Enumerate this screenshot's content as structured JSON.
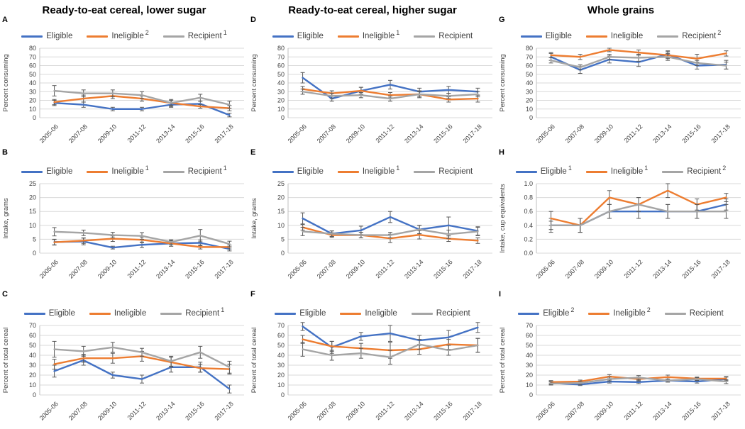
{
  "figure": {
    "column_titles": [
      "Ready-to-eat cereal, lower sugar",
      "Ready-to-eat cereal, higher sugar",
      "Whole grains"
    ],
    "colors": {
      "eligible": "#4472C4",
      "ineligible": "#ED7D31",
      "recipient": "#A5A5A5",
      "error_bar": "#595959",
      "gridline": "#D9D9D9"
    }
  },
  "chart_data": [
    {
      "type": "line",
      "panel": "A",
      "column_title": "Ready-to-eat cereal, lower sugar",
      "ylabel": "Percent consuming",
      "ylim": [
        0,
        80
      ],
      "ystep": 10,
      "ydecimals": 0,
      "grid": true,
      "legend_position": "top",
      "categories": [
        "2005-06",
        "2007-08",
        "2009-10",
        "2011-12",
        "2013-14",
        "2015-16",
        "2017-18"
      ],
      "series": [
        {
          "name": "Eligible",
          "legend_sup": "",
          "color": "#4472C4",
          "values": [
            17,
            15,
            10,
            10,
            15,
            16,
            3
          ],
          "errors": [
            3,
            3,
            2,
            2,
            3,
            3,
            2
          ]
        },
        {
          "name": "Ineligible",
          "legend_sup": "2",
          "color": "#ED7D31",
          "values": [
            18,
            22,
            25,
            22,
            17,
            13,
            11
          ],
          "errors": [
            3,
            4,
            3,
            3,
            3,
            2,
            3
          ]
        },
        {
          "name": "Recipient",
          "legend_sup": "1",
          "color": "#A5A5A5",
          "values": [
            31,
            28,
            28,
            26,
            17,
            23,
            15
          ],
          "errors": [
            6,
            4,
            4,
            4,
            4,
            4,
            4
          ]
        }
      ]
    },
    {
      "type": "line",
      "panel": "B",
      "column_title": "Ready-to-eat cereal, lower sugar",
      "ylabel": "Intake, grams",
      "ylim": [
        0,
        25
      ],
      "ystep": 5,
      "ydecimals": 0,
      "grid": true,
      "legend_position": "top",
      "categories": [
        "2005-06",
        "2007-08",
        "2009-10",
        "2011-12",
        "2013-14",
        "2015-16",
        "2017-18"
      ],
      "series": [
        {
          "name": "Eligible",
          "legend_sup": "",
          "color": "#4472C4",
          "values": [
            4,
            4.2,
            2,
            3,
            3.5,
            3.7,
            1.5
          ],
          "errors": [
            1,
            1.2,
            0.5,
            1,
            1,
            1,
            0.7
          ]
        },
        {
          "name": "Ineligible",
          "legend_sup": "1",
          "color": "#ED7D31",
          "values": [
            3.9,
            4.5,
            5.2,
            4.8,
            3.5,
            2.2,
            2.2
          ],
          "errors": [
            1,
            1,
            1,
            1,
            1,
            0.7,
            0.7
          ]
        },
        {
          "name": "Recipient",
          "legend_sup": "1",
          "color": "#A5A5A5",
          "values": [
            7.7,
            7.3,
            6.5,
            6.2,
            4,
            6.3,
            3.3
          ],
          "errors": [
            1.5,
            1,
            1,
            1.2,
            0.8,
            2.2,
            1
          ]
        }
      ]
    },
    {
      "type": "line",
      "panel": "C",
      "column_title": "Ready-to-eat cereal, lower sugar",
      "ylabel": "Percent of total cereal",
      "ylim": [
        0,
        70
      ],
      "ystep": 10,
      "ydecimals": 0,
      "grid": true,
      "legend_position": "top",
      "categories": [
        "2005-06",
        "2007-08",
        "2009-10",
        "2011-12",
        "2013-14",
        "2015-16",
        "2017-18"
      ],
      "series": [
        {
          "name": "Eligible",
          "legend_sup": "",
          "color": "#4472C4",
          "values": [
            24,
            35,
            20,
            16,
            28,
            28,
            6
          ],
          "errors": [
            6,
            5,
            3,
            4,
            5,
            5,
            4
          ]
        },
        {
          "name": "Ineligible",
          "legend_sup": "",
          "color": "#ED7D31",
          "values": [
            31,
            37,
            37,
            39,
            33,
            27,
            26
          ],
          "errors": [
            5,
            4,
            5,
            5,
            5,
            4,
            5
          ]
        },
        {
          "name": "Recipient",
          "legend_sup": "1",
          "color": "#A5A5A5",
          "values": [
            46,
            44,
            48,
            43,
            34,
            43,
            28
          ],
          "errors": [
            8,
            5,
            5,
            4,
            5,
            6,
            6
          ]
        }
      ]
    },
    {
      "type": "line",
      "panel": "D",
      "column_title": "Ready-to-eat cereal, higher sugar",
      "ylabel": "Percent consuming",
      "ylim": [
        0,
        80
      ],
      "ystep": 10,
      "ydecimals": 0,
      "grid": true,
      "legend_position": "top",
      "categories": [
        "2005-06",
        "2007-08",
        "2009-10",
        "2011-12",
        "2013-14",
        "2015-16",
        "2017-18"
      ],
      "series": [
        {
          "name": "Eligible",
          "legend_sup": "",
          "color": "#4472C4",
          "values": [
            46,
            22,
            31,
            38,
            30,
            32,
            30
          ],
          "errors": [
            6,
            3,
            4,
            5,
            4,
            4,
            4
          ]
        },
        {
          "name": "Ineligible",
          "legend_sup": "1",
          "color": "#ED7D31",
          "values": [
            33,
            28,
            31,
            26,
            27,
            21,
            22
          ],
          "errors": [
            3,
            3,
            4,
            3,
            3,
            3,
            4
          ]
        },
        {
          "name": "Recipient",
          "legend_sup": "",
          "color": "#A5A5A5",
          "values": [
            30,
            25,
            26,
            22,
            27,
            25,
            27
          ],
          "errors": [
            3,
            3,
            3,
            3,
            4,
            3,
            3
          ]
        }
      ]
    },
    {
      "type": "line",
      "panel": "E",
      "column_title": "Ready-to-eat cereal, higher sugar",
      "ylabel": "Intake, grams",
      "ylim": [
        0,
        25
      ],
      "ystep": 5,
      "ydecimals": 0,
      "grid": true,
      "legend_position": "top",
      "categories": [
        "2005-06",
        "2007-08",
        "2009-10",
        "2011-12",
        "2013-14",
        "2015-16",
        "2017-18"
      ],
      "series": [
        {
          "name": "Eligible",
          "legend_sup": "",
          "color": "#4472C4",
          "values": [
            12.5,
            7,
            8.2,
            13,
            8.5,
            10,
            8
          ],
          "errors": [
            2,
            1,
            1.5,
            2,
            1.5,
            3,
            1.5
          ]
        },
        {
          "name": "Ineligible",
          "legend_sup": "1",
          "color": "#ED7D31",
          "values": [
            9.3,
            6.5,
            6.5,
            5.3,
            6.6,
            5.2,
            4.5
          ],
          "errors": [
            1,
            0.8,
            1,
            1.5,
            1.5,
            1,
            1
          ]
        },
        {
          "name": "Recipient",
          "legend_sup": "",
          "color": "#A5A5A5",
          "values": [
            7.8,
            7,
            6.5,
            6.5,
            8.5,
            6.8,
            7.8
          ],
          "errors": [
            1.5,
            1,
            1,
            1,
            1.5,
            1.5,
            1.5
          ]
        }
      ]
    },
    {
      "type": "line",
      "panel": "F",
      "column_title": "Ready-to-eat cereal, higher sugar",
      "ylabel": "Percent of total cereal",
      "ylim": [
        0,
        70
      ],
      "ystep": 10,
      "ydecimals": 0,
      "grid": true,
      "legend_position": "top",
      "categories": [
        "2005-06",
        "2007-08",
        "2009-10",
        "2011-12",
        "2013-14",
        "2015-16",
        "2017-18"
      ],
      "series": [
        {
          "name": "Eligible",
          "legend_sup": "",
          "color": "#4472C4",
          "values": [
            69,
            48,
            59,
            62,
            55,
            58,
            68
          ],
          "errors": [
            4,
            6,
            4,
            8,
            5,
            7,
            5
          ]
        },
        {
          "name": "Ineligible",
          "legend_sup": "",
          "color": "#ED7D31",
          "values": [
            56,
            49,
            47,
            45,
            46,
            51,
            50
          ],
          "errors": [
            4,
            5,
            5,
            8,
            5,
            5,
            7
          ]
        },
        {
          "name": "Recipient",
          "legend_sup": "",
          "color": "#A5A5A5",
          "values": [
            46,
            40,
            42,
            38,
            51,
            45,
            50
          ],
          "errors": [
            7,
            5,
            5,
            7,
            5,
            5,
            7
          ]
        }
      ]
    },
    {
      "type": "line",
      "panel": "G",
      "column_title": "Whole grains",
      "ylabel": "Percent consuming",
      "ylim": [
        0,
        80
      ],
      "ystep": 10,
      "ydecimals": 0,
      "grid": true,
      "legend_position": "top",
      "categories": [
        "2005-06",
        "2007-08",
        "2009-10",
        "2011-12",
        "2013-14",
        "2015-16",
        "2017-18"
      ],
      "series": [
        {
          "name": "Eligible",
          "legend_sup": "",
          "color": "#4472C4",
          "values": [
            70,
            55,
            67,
            64,
            73,
            60,
            61
          ],
          "errors": [
            4,
            4,
            4,
            5,
            4,
            4,
            5
          ]
        },
        {
          "name": "Ineligible",
          "legend_sup": "",
          "color": "#ED7D31",
          "values": [
            72,
            70,
            78,
            75,
            72,
            68,
            74
          ],
          "errors": [
            3,
            3,
            2,
            3,
            4,
            5,
            3
          ]
        },
        {
          "name": "Recipient",
          "legend_sup": "2",
          "color": "#A5A5A5",
          "values": [
            66,
            58,
            70,
            69,
            70,
            63,
            60
          ],
          "errors": [
            3,
            3,
            3,
            4,
            4,
            3,
            4
          ]
        }
      ]
    },
    {
      "type": "line",
      "panel": "H",
      "column_title": "Whole grains",
      "ylabel": "Intake, cup equivalents",
      "ylim": [
        0,
        1
      ],
      "ystep": 0.2,
      "ydecimals": 1,
      "grid": true,
      "legend_position": "top",
      "categories": [
        "2005-06",
        "2007-08",
        "2009-10",
        "2011-12",
        "2013-14",
        "2015-16",
        "2017-18"
      ],
      "series": [
        {
          "name": "Eligible",
          "legend_sup": "1",
          "color": "#4472C4",
          "values": [
            0.4,
            0.4,
            0.6,
            0.6,
            0.6,
            0.6,
            0.7
          ],
          "errors": [
            0.1,
            0.1,
            0.1,
            0.1,
            0.1,
            0.1,
            0.08
          ]
        },
        {
          "name": "Ineligible",
          "legend_sup": "1",
          "color": "#ED7D31",
          "values": [
            0.5,
            0.4,
            0.8,
            0.7,
            0.9,
            0.7,
            0.8
          ],
          "errors": [
            0.1,
            0.1,
            0.1,
            0.1,
            0.1,
            0.08,
            0.06
          ]
        },
        {
          "name": "Recipient",
          "legend_sup": "2",
          "color": "#A5A5A5",
          "values": [
            0.4,
            0.4,
            0.6,
            0.7,
            0.6,
            0.6,
            0.6
          ],
          "errors": [
            0.06,
            0.1,
            0.1,
            0.1,
            0.1,
            0.1,
            0.1
          ]
        }
      ]
    },
    {
      "type": "line",
      "panel": "I",
      "column_title": "Whole grains",
      "ylabel": "Percent of total cereal",
      "ylim": [
        0,
        70
      ],
      "ystep": 10,
      "ydecimals": 0,
      "grid": true,
      "legend_position": "top",
      "categories": [
        "2005-06",
        "2007-08",
        "2009-10",
        "2011-12",
        "2013-14",
        "2015-16",
        "2017-18"
      ],
      "series": [
        {
          "name": "Eligible",
          "legend_sup": "2",
          "color": "#4472C4",
          "values": [
            12,
            10.5,
            13.5,
            13,
            14.5,
            13.5,
            16
          ],
          "errors": [
            1.5,
            1,
            1.5,
            1.5,
            1.5,
            1.5,
            2
          ]
        },
        {
          "name": "Ineligible",
          "legend_sup": "2",
          "color": "#ED7D31",
          "values": [
            13,
            13.5,
            18.5,
            16,
            18,
            16.5,
            16.5
          ],
          "errors": [
            1.5,
            1.5,
            2,
            2,
            2,
            1.5,
            2
          ]
        },
        {
          "name": "Recipient",
          "legend_sup": "",
          "color": "#A5A5A5",
          "values": [
            11.5,
            12,
            16,
            17.5,
            14.5,
            16,
            13.5
          ],
          "errors": [
            1.5,
            1.5,
            2,
            2,
            1.5,
            1.5,
            2
          ]
        }
      ]
    }
  ]
}
